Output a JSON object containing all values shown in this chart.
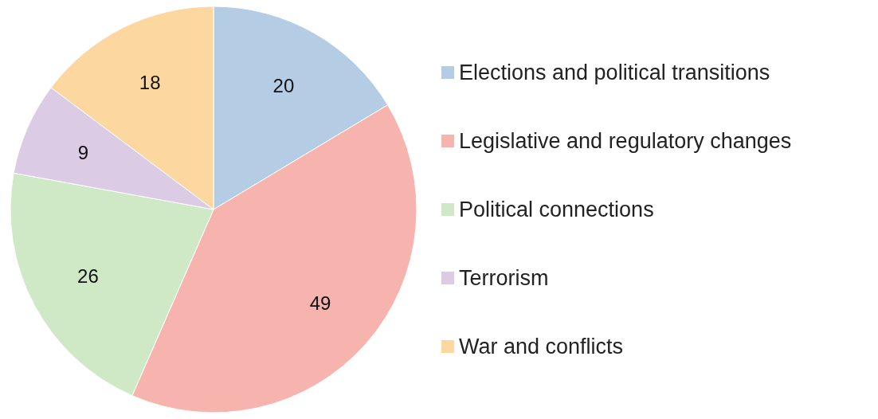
{
  "chart_data": {
    "type": "pie",
    "categories": [
      "Elections and political transitions",
      "Legislative and regulatory changes",
      "Political connections",
      "Terrorism",
      "War and conflicts"
    ],
    "values": [
      20,
      49,
      26,
      9,
      18
    ],
    "colors": [
      "#b4cde4",
      "#f7b3ad",
      "#cfe8c6",
      "#dccbe4",
      "#fdd7a0"
    ],
    "data_labels": true,
    "legend": "right"
  }
}
